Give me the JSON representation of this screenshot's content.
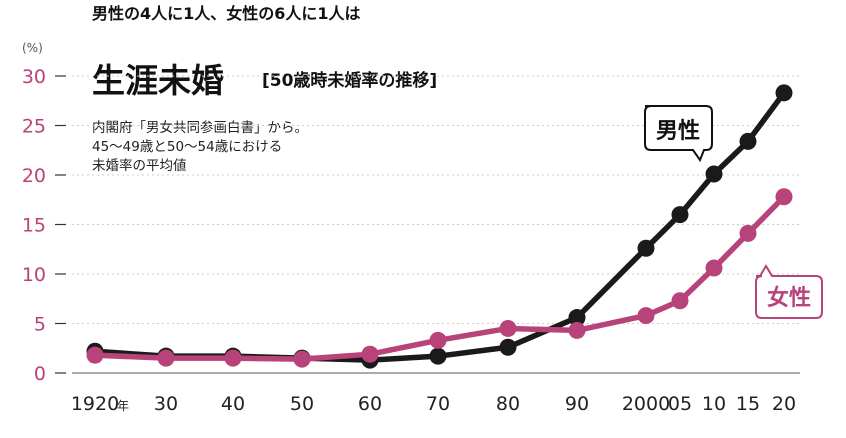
{
  "title_line1": "男性の4人に1人、女性の6人に1人は",
  "title_line2": "生涯未婚",
  "subtitle": "[50歳時未婚率の推移]",
  "source_note": [
    "内閣府「男女共同参画白書」から。",
    "45～49歳と50～54歳における",
    "未婚率の平均値"
  ],
  "colors": {
    "male": "#1a1a1a",
    "female": "#b8437a",
    "axis_labels": "#b8437a",
    "grid": "#cccccc"
  },
  "chart_data": {
    "type": "line",
    "title": "男性の4人に1人、女性の6人に1人は生涯未婚",
    "subtitle": "50歳時未婚率の推移",
    "y_unit": "(%)",
    "x_suffix": "年",
    "x_tick_labels": [
      "1920",
      "30",
      "40",
      "50",
      "60",
      "70",
      "80",
      "90",
      "2000",
      "05",
      "10",
      "15",
      "20"
    ],
    "x": [
      1920,
      1930,
      1940,
      1950,
      1960,
      1970,
      1980,
      1990,
      2000,
      2005,
      2010,
      2015,
      2020
    ],
    "ylim": [
      0,
      30
    ],
    "yticks": [
      0,
      5,
      10,
      15,
      20,
      25,
      30
    ],
    "grid": true,
    "series": [
      {
        "name": "男性",
        "values": [
          2.2,
          1.7,
          1.7,
          1.5,
          1.3,
          1.7,
          2.6,
          5.6,
          12.6,
          16.0,
          20.1,
          23.4,
          28.3
        ]
      },
      {
        "name": "女性",
        "values": [
          1.8,
          1.5,
          1.5,
          1.4,
          1.9,
          3.3,
          4.5,
          4.3,
          5.8,
          7.3,
          10.6,
          14.1,
          17.8
        ]
      }
    ]
  }
}
